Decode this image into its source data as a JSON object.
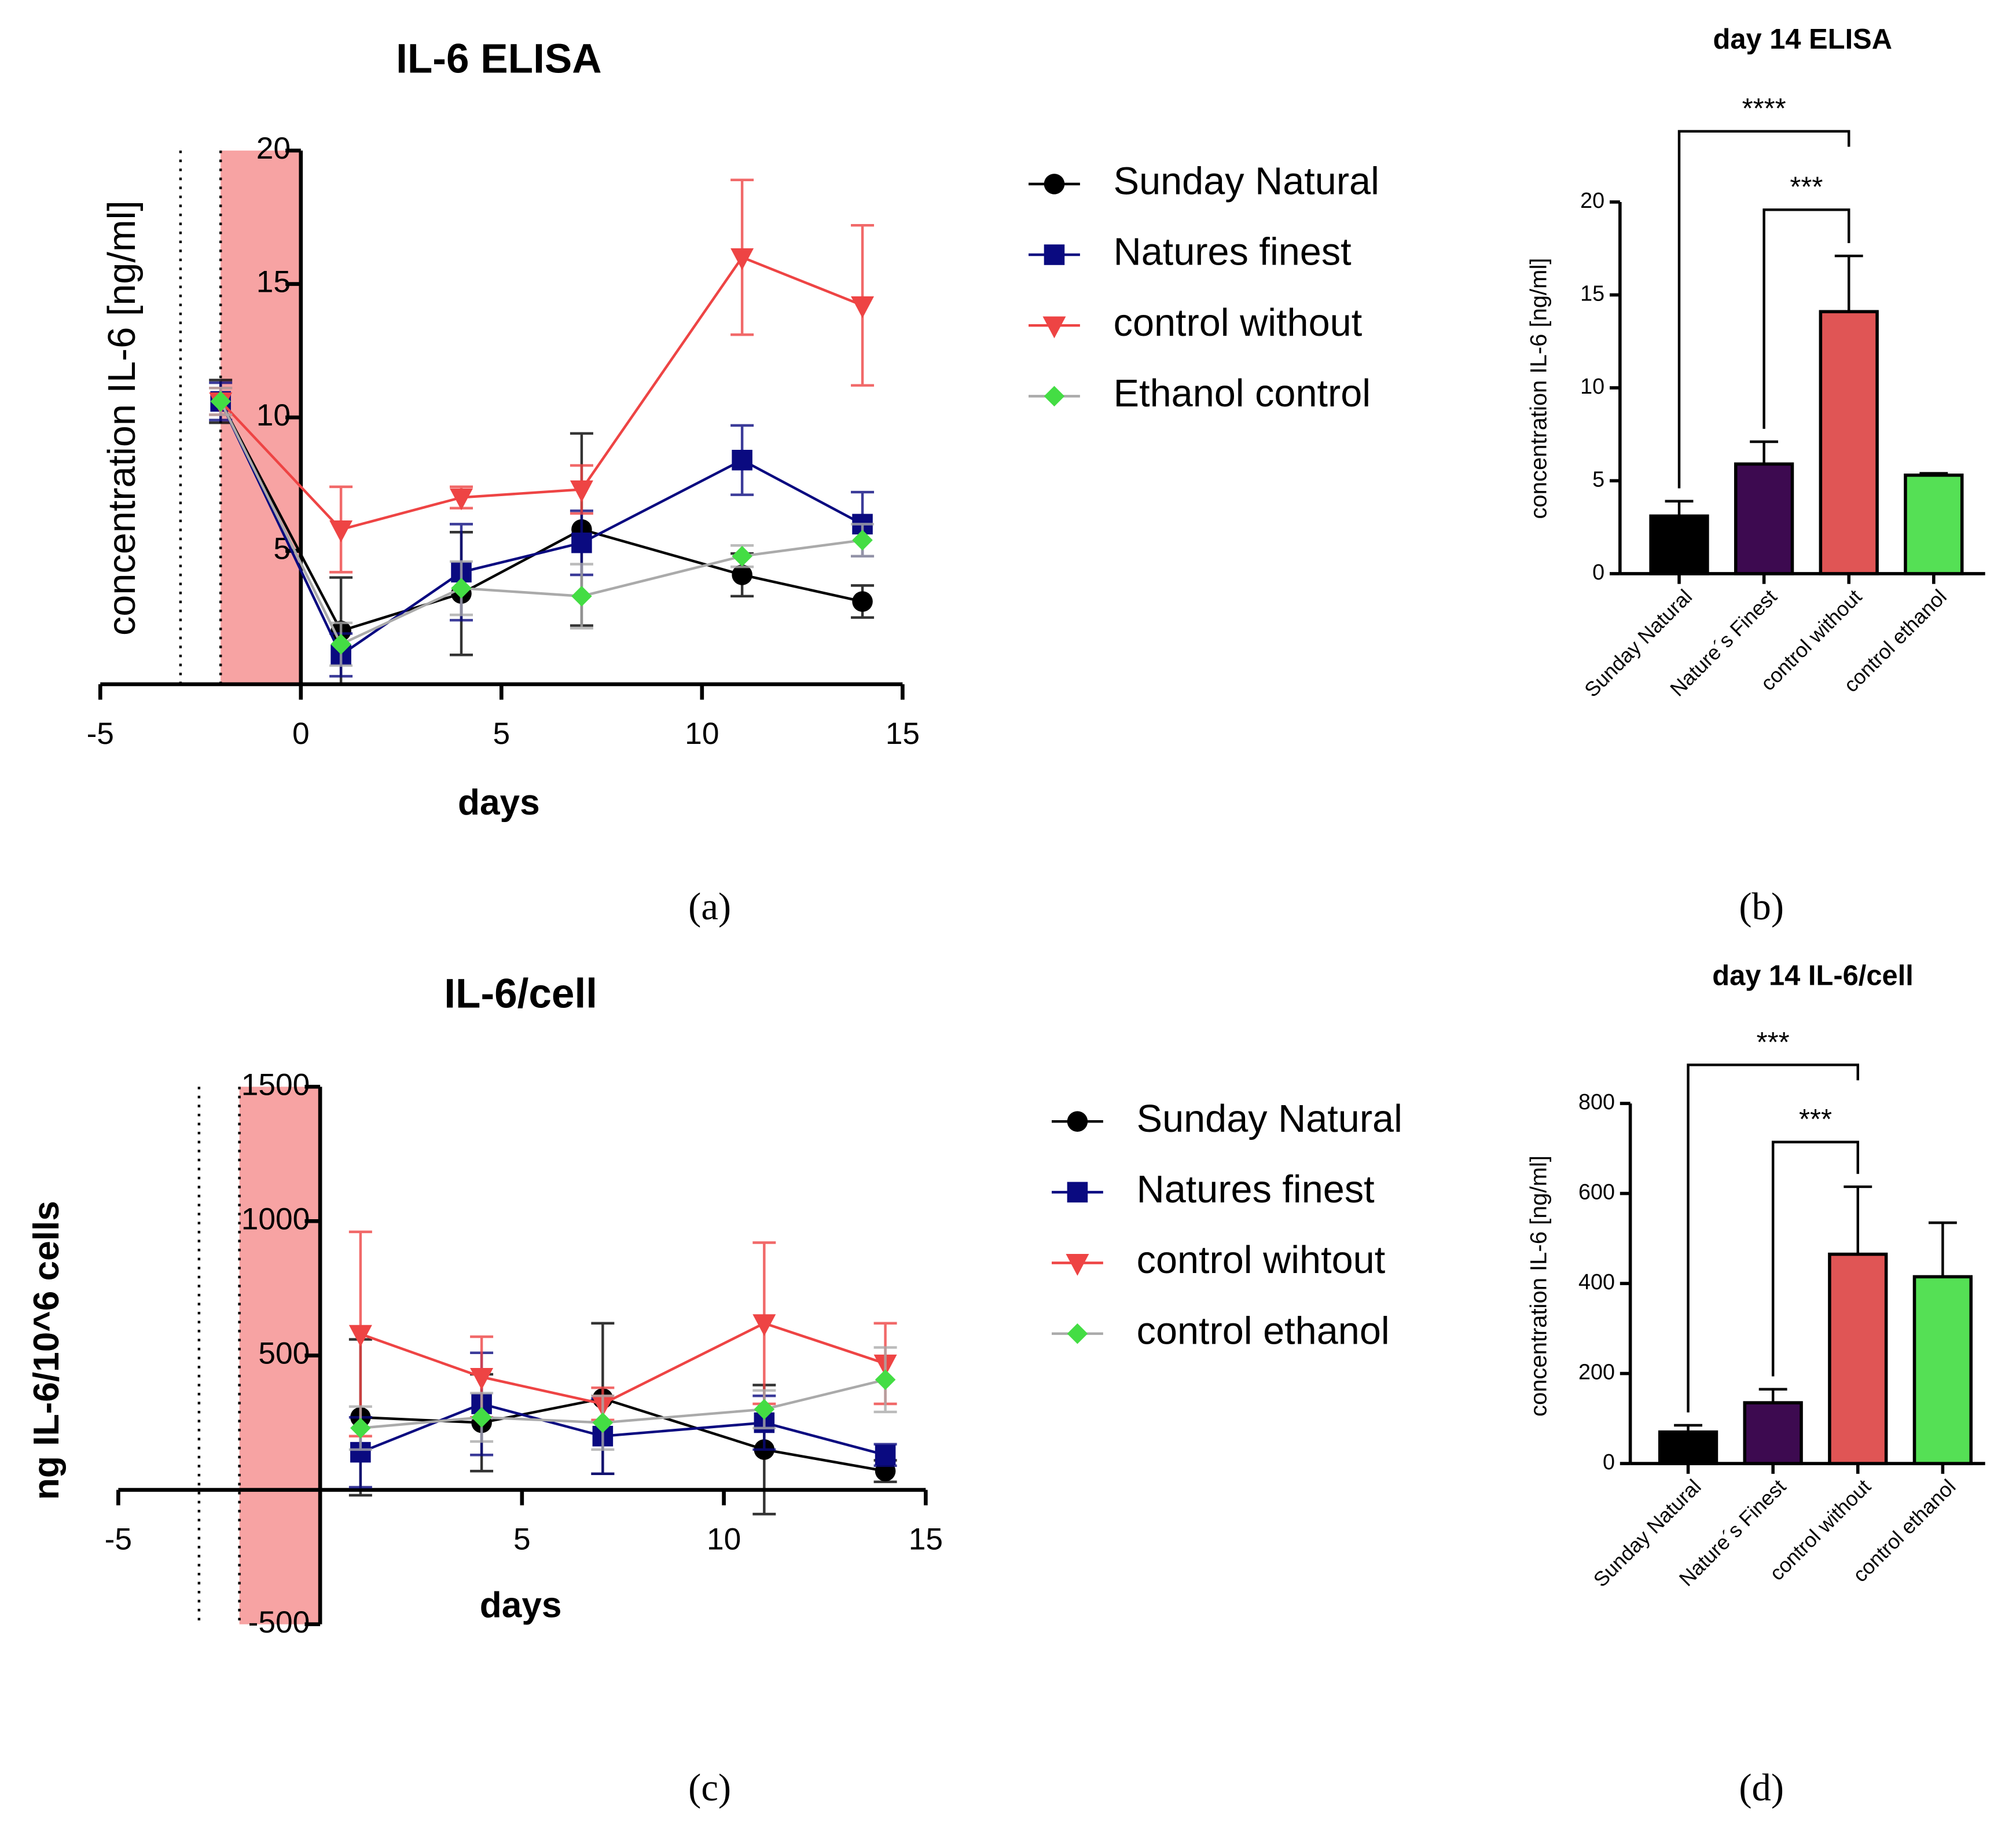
{
  "chart_data": [
    {
      "type": "line",
      "title": "IL-6 ELISA",
      "x_label": "days",
      "y_label": "concentration IL-6 [ng/ml]",
      "panel_label": "(a)",
      "xlim": [
        -5,
        15
      ],
      "xticks": [
        -5,
        0,
        5,
        10,
        15
      ],
      "ylim": [
        0,
        20
      ],
      "yticks": [
        5,
        10,
        15,
        20
      ],
      "shaded_region": [
        -2,
        0
      ],
      "dotted_lines": [
        -3,
        -2
      ],
      "x": [
        -2,
        1,
        4,
        7,
        11,
        14
      ],
      "series": [
        {
          "name": "Sunday Natural",
          "color": "#000000",
          "line_color": "#000000",
          "marker": "circle",
          "values": [
            10.6,
            2.0,
            3.4,
            5.8,
            4.1,
            3.1
          ],
          "errors": [
            0.8,
            2.0,
            2.3,
            3.6,
            0.8,
            0.6
          ]
        },
        {
          "name": "Natures finest",
          "color": "#0a0a80",
          "line_color": "#0a0a80",
          "marker": "square",
          "values": [
            10.6,
            1.1,
            4.2,
            5.3,
            8.4,
            6.0
          ],
          "errors": [
            0.7,
            0.8,
            1.8,
            1.2,
            1.3,
            1.2
          ]
        },
        {
          "name": "control without",
          "color": "#ee4444",
          "line_color": "#ee4444",
          "marker": "triangle",
          "values": [
            10.6,
            5.8,
            7.0,
            7.3,
            16.0,
            14.2
          ],
          "errors": [
            0.5,
            1.6,
            0.4,
            0.9,
            2.9,
            3.0
          ]
        },
        {
          "name": "Ethanol control",
          "color": "#44dd44",
          "line_color": "#aaaaaa",
          "marker": "diamond",
          "values": [
            10.6,
            1.5,
            3.6,
            3.3,
            4.8,
            5.4
          ],
          "errors": [
            0.5,
            0.8,
            1.0,
            1.2,
            0.4,
            0.6
          ]
        }
      ]
    },
    {
      "type": "bar",
      "title": "day 14 ELISA",
      "y_label": "concentration IL-6 [ng/ml]",
      "panel_label": "(b)",
      "categories": [
        "Sunday Natural",
        "Nature´s Finest",
        "control without",
        "control ethanol"
      ],
      "values": [
        3.1,
        5.9,
        14.1,
        5.3
      ],
      "errors": [
        0.8,
        1.2,
        3.0,
        0.1
      ],
      "colors": [
        "#000000",
        "#3d0a50",
        "#e05555",
        "#55e055"
      ],
      "ylim": [
        0,
        20
      ],
      "yticks": [
        0,
        5,
        10,
        15,
        20
      ],
      "annotations": [
        {
          "text": "****",
          "from": 0,
          "to": 2
        },
        {
          "text": "***",
          "from": 1,
          "to": 2
        }
      ]
    },
    {
      "type": "line",
      "title": "IL-6/cell",
      "x_label": "days",
      "y_label": "ng IL-6/10^6 cells",
      "panel_label": "(c)",
      "xlim": [
        -5,
        15
      ],
      "xticks": [
        -5,
        5,
        10,
        15
      ],
      "ylim": [
        -500,
        1500
      ],
      "yticks": [
        -500,
        500,
        1000,
        1500
      ],
      "shaded_region": [
        -2,
        0
      ],
      "dotted_lines": [
        -3,
        -2
      ],
      "x": [
        1,
        4,
        7,
        11,
        14
      ],
      "series": [
        {
          "name": "Sunday Natural",
          "color": "#000000",
          "line_color": "#000000",
          "marker": "circle",
          "values": [
            270,
            250,
            340,
            150,
            70
          ],
          "errors": [
            290,
            180,
            280,
            240,
            40
          ]
        },
        {
          "name": "Natures finest",
          "color": "#0a0a80",
          "line_color": "#0a0a80",
          "marker": "square",
          "values": [
            140,
            320,
            200,
            250,
            130
          ],
          "errors": [
            130,
            190,
            140,
            100,
            40
          ]
        },
        {
          "name": "control wihtout",
          "color": "#ee4444",
          "line_color": "#ee4444",
          "marker": "triangle",
          "values": [
            580,
            420,
            320,
            620,
            470
          ],
          "errors": [
            380,
            150,
            60,
            300,
            150
          ]
        },
        {
          "name": "control ethanol",
          "color": "#44dd44",
          "line_color": "#aaaaaa",
          "marker": "diamond",
          "values": [
            230,
            270,
            250,
            300,
            410
          ],
          "errors": [
            80,
            90,
            100,
            70,
            120
          ]
        }
      ]
    },
    {
      "type": "bar",
      "title": "day 14 IL-6/cell",
      "y_label": "concentration IL-6 [ng/ml]",
      "panel_label": "(d)",
      "categories": [
        "Sunday Natural",
        "Nature´s Finest",
        "control without",
        "control ethanol"
      ],
      "values": [
        70,
        135,
        465,
        415
      ],
      "errors": [
        15,
        30,
        150,
        120
      ],
      "colors": [
        "#000000",
        "#3d0a50",
        "#e05555",
        "#55e055"
      ],
      "ylim": [
        0,
        800
      ],
      "yticks": [
        0,
        200,
        400,
        600,
        800
      ],
      "annotations": [
        {
          "text": "***",
          "from": 0,
          "to": 2
        },
        {
          "text": "***",
          "from": 1,
          "to": 2
        }
      ]
    }
  ]
}
